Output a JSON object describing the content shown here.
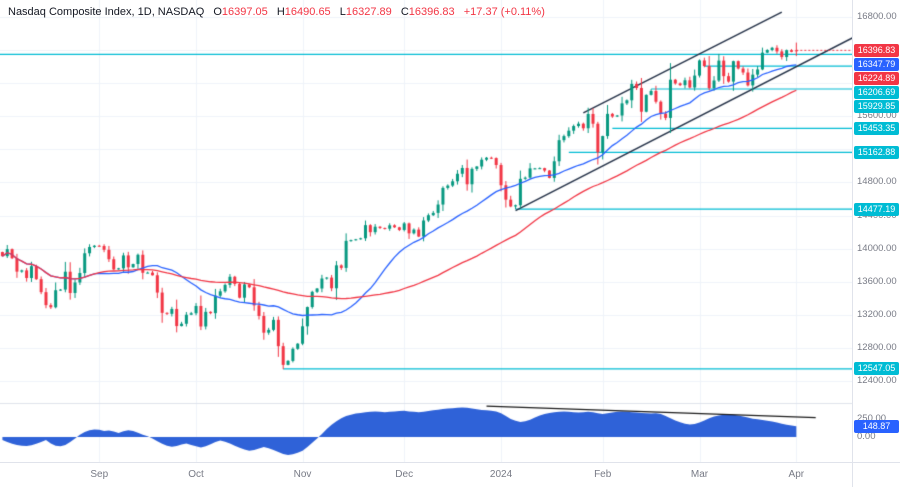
{
  "header": {
    "title": "Nasdaq Composite Index, 1D, NASDAQ",
    "open_label": "O",
    "open": "16397.05",
    "high_label": "H",
    "high": "16490.65",
    "low_label": "L",
    "low": "16327.89",
    "close_label": "C",
    "close": "16396.83",
    "change": "+17.37 (+0.11%)"
  },
  "colors": {
    "up": "#089981",
    "down": "#f23645",
    "teal": "#00bcd4",
    "blue": "#2962ff",
    "grid": "#f0f3fa",
    "axis_text": "#787b86",
    "text": "#131722",
    "border": "#e0e3eb",
    "channel": "#253248",
    "indicator_fill": "#2f62d8",
    "trendline": "#1a1a1a"
  },
  "chart_data": {
    "type": "candlestick",
    "title": "Nasdaq Composite Index, 1D, NASDAQ",
    "symbol": "Nasdaq Composite Index",
    "timeframe": "1D",
    "exchange": "NASDAQ",
    "x_axis": {
      "labels": [
        "Sep",
        "Oct",
        "Nov",
        "Dec",
        "2024",
        "Feb",
        "Mar",
        "Apr"
      ],
      "month_start_indices": [
        20,
        40,
        62,
        83,
        103,
        124,
        144,
        164
      ],
      "total_slots": 176
    },
    "y_axis": {
      "min": 12400,
      "max": 16800,
      "grid_step": 400,
      "ticks": [
        {
          "value": 16800,
          "label": "16800.00"
        },
        {
          "value": 15600,
          "label": "15600.00"
        },
        {
          "value": 14800,
          "label": "14800.00"
        },
        {
          "value": 14400,
          "label": "14400.00"
        },
        {
          "value": 14000,
          "label": "14000.00"
        },
        {
          "value": 13600,
          "label": "13600.00"
        },
        {
          "value": 13200,
          "label": "13200.00"
        },
        {
          "value": 12800,
          "label": "12800.00"
        },
        {
          "value": 12400,
          "label": "12400.00"
        }
      ]
    },
    "candles": {
      "closes": [
        13909,
        13994,
        13884,
        13722,
        13737,
        13645,
        13788,
        13631,
        13474,
        13317,
        13291,
        13497,
        13505,
        13721,
        13464,
        13591,
        13705,
        13944,
        14020,
        14035,
        14032,
        13986,
        13872,
        13749,
        13762,
        13918,
        13774,
        13814,
        13926,
        13708,
        13710,
        13678,
        13469,
        13224,
        13212,
        13271,
        13064,
        13092,
        13201,
        13219,
        13307,
        13059,
        13236,
        13220,
        13431,
        13484,
        13562,
        13660,
        13574,
        13407,
        13567,
        13533,
        13314,
        13186,
        12984,
        13018,
        13139,
        12821,
        12595,
        12643,
        12789,
        12851,
        13061,
        13294,
        13478,
        13518,
        13639,
        13650,
        13521,
        13798,
        13767,
        14094,
        14103,
        14113,
        14125,
        14284,
        14199,
        14265,
        14250,
        14241,
        14282,
        14258,
        14226,
        14305,
        14185,
        14230,
        14146,
        14340,
        14404,
        14432,
        14533,
        14734,
        14762,
        14814,
        14905,
        14975,
        14778,
        14964,
        14993,
        15075,
        15099,
        15095,
        15011,
        14766,
        14592,
        14510,
        14524,
        14844,
        14858,
        14970,
        14970,
        14973,
        14944,
        14855,
        15056,
        15311,
        15360,
        15426,
        15482,
        15510,
        15455,
        15628,
        15510,
        15164,
        15361,
        15629,
        15597,
        15609,
        15756,
        15793,
        15991,
        15942,
        15655,
        15859,
        15906,
        15776,
        15631,
        15580,
        16042,
        15997,
        15976,
        16035,
        15948,
        16092,
        16275,
        16207,
        15940,
        16032,
        16273,
        16085,
        16019,
        16266,
        16177,
        16129,
        15973,
        16103,
        16166,
        16369,
        16401,
        16428,
        16384,
        16316,
        16399,
        16379,
        16396.83
      ],
      "first_open": 13959,
      "key_lows": {
        "58": 12543,
        "106": 14477.19
      },
      "last_ohlc": {
        "open": 16397.05,
        "high": 16490.65,
        "low": 16327.89,
        "close": 16396.83
      }
    },
    "moving_averages": [
      {
        "period": 20,
        "color": "#2962ff",
        "last_value_label": "16347.79",
        "last_value": 16347.79
      },
      {
        "period": 50,
        "color": "#f23645",
        "last_value_label": "16224.89",
        "last_value": 16224.89
      }
    ],
    "horizontal_line": {
      "value": 16347.79
    },
    "support_lines": [
      {
        "value": 16206.69,
        "label": "16206.69",
        "start_index": 145
      },
      {
        "value": 15929.85,
        "label": "15929.85",
        "start_index": 134
      },
      {
        "value": 15453.35,
        "label": "15453.35",
        "start_index": 126
      },
      {
        "value": 15162.88,
        "label": "15162.88",
        "start_index": 117
      },
      {
        "value": 14477.19,
        "label": "14477.19",
        "start_index": 106
      },
      {
        "value": 12547.05,
        "label": "12547.05",
        "start_index": 58
      }
    ],
    "channel_lines": [
      {
        "from_index": 106,
        "from_price": 14460,
        "to_index": 176,
        "to_price": 16560
      },
      {
        "from_index": 120,
        "from_price": 15640,
        "to_index": 161,
        "to_price": 16860
      }
    ],
    "last_price": {
      "value": 16396.83,
      "label": "16396.83"
    },
    "indicator": {
      "type": "area",
      "axis_ticks": [
        {
          "value": 250,
          "label": "250.00"
        },
        {
          "value": 0,
          "label": "0.00"
        }
      ],
      "last_value": 148.87,
      "last_value_label": "148.87",
      "trendline": {
        "from_index": 100,
        "from_value": 430,
        "to_index": 168,
        "to_value": 270
      },
      "values": [
        -40,
        -70,
        -95,
        -110,
        -120,
        -125,
        -115,
        -95,
        -70,
        -40,
        -90,
        -120,
        -130,
        -110,
        -70,
        -20,
        30,
        70,
        95,
        105,
        100,
        85,
        90,
        75,
        55,
        80,
        95,
        85,
        60,
        30,
        10,
        -20,
        -60,
        -95,
        -120,
        -135,
        -125,
        -105,
        -90,
        -110,
        -130,
        -145,
        -130,
        -100,
        -70,
        -50,
        -65,
        -90,
        -120,
        -150,
        -175,
        -190,
        -180,
        -160,
        -140,
        -155,
        -180,
        -210,
        -235,
        -250,
        -240,
        -220,
        -190,
        -140,
        -80,
        -20,
        40,
        110,
        170,
        220,
        260,
        290,
        310,
        325,
        335,
        345,
        350,
        355,
        350,
        345,
        350,
        355,
        360,
        365,
        355,
        350,
        345,
        350,
        360,
        370,
        380,
        390,
        395,
        400,
        405,
        410,
        405,
        395,
        385,
        375,
        370,
        365,
        355,
        330,
        290,
        250,
        225,
        210,
        220,
        240,
        270,
        300,
        320,
        335,
        345,
        350,
        355,
        350,
        345,
        340,
        345,
        350,
        345,
        330,
        320,
        330,
        340,
        350,
        355,
        350,
        345,
        340,
        335,
        330,
        325,
        330,
        320,
        290,
        260,
        230,
        205,
        185,
        175,
        180,
        200,
        230,
        260,
        285,
        300,
        310,
        315,
        310,
        300,
        285,
        270,
        255,
        245,
        235,
        225,
        215,
        200,
        185,
        170,
        158,
        148.87
      ]
    }
  }
}
